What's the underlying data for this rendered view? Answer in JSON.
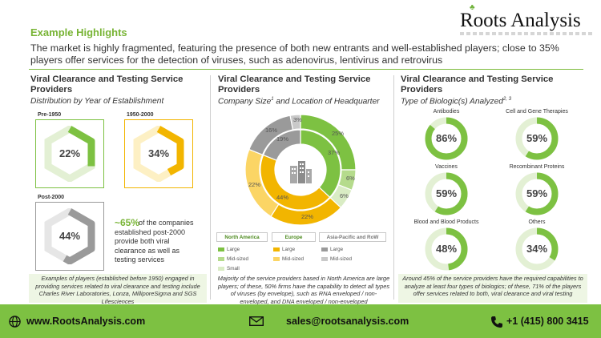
{
  "brand": {
    "name": "Roots Analysis"
  },
  "header": {
    "eyebrow": "Example Highlights",
    "headline": "The market is highly fragmented, featuring the presence of both new entrants and well-established players; close to 35% players offer services  for the detection of viruses, such as adenovirus, lentivirus and retrovirus"
  },
  "col1": {
    "title": "Viral Clearance and Testing Service Providers",
    "subtitle": "Distribution by Year of Establishment",
    "boxes": [
      {
        "label": "Pre-1950",
        "value": "22%",
        "fraction": 0.22,
        "color": "#7dc142"
      },
      {
        "label": "1950-2000",
        "value": "34%",
        "fraction": 0.34,
        "color": "#f2b500"
      },
      {
        "label": "Post-2000",
        "value": "44%",
        "fraction": 0.44,
        "color": "#9a9a9a"
      }
    ],
    "stat_big": "~65%",
    "stat_text": "of the companies established post-2000 provide both viral clearance as well as testing services",
    "note": "Examples of players (established before 1950) engaged in providing services related to viral clearance and testing include Charles River Laboratories, Lonza, MilliporeSigma and SGS Lifesciences"
  },
  "col2": {
    "title": "Viral Clearance and Testing Service Providers",
    "subtitle": "Company Size",
    "subtitle_sup": "1",
    "subtitle_rest": " and Location of Headquarter",
    "outer_ring": [
      {
        "label": "25%",
        "value": 25,
        "color": "#7dc142"
      },
      {
        "label": "6%",
        "value": 6,
        "color": "#b5db8c"
      },
      {
        "label": "6%",
        "value": 6,
        "color": "#d9ecc4"
      },
      {
        "label": "22%",
        "value": 22,
        "color": "#f2b500"
      },
      {
        "label": "22%",
        "value": 22,
        "color": "#fbd565"
      },
      {
        "label": "16%",
        "value": 16,
        "color": "#9a9a9a"
      },
      {
        "label": "3%",
        "value": 3,
        "color": "#c9c9c9"
      }
    ],
    "inner_ring": [
      {
        "label": "37%",
        "value": 37,
        "color": "#7dc142"
      },
      {
        "label": "44%",
        "value": 44,
        "color": "#f2b500"
      },
      {
        "label": "19%",
        "value": 19,
        "color": "#9a9a9a"
      }
    ],
    "legend": [
      {
        "head": "North America",
        "items": [
          {
            "label": "Large",
            "color": "#7dc142"
          },
          {
            "label": "Mid-sized",
            "color": "#b5db8c"
          },
          {
            "label": "Small",
            "color": "#d9ecc4"
          }
        ]
      },
      {
        "head": "Europe",
        "items": [
          {
            "label": "Large",
            "color": "#f2b500"
          },
          {
            "label": "Mid-sized",
            "color": "#fbd565"
          }
        ]
      },
      {
        "head": "Asia-Pacific and RoW",
        "items": [
          {
            "label": "Large",
            "color": "#9a9a9a"
          },
          {
            "label": "Mid-sized",
            "color": "#c9c9c9"
          }
        ]
      }
    ],
    "note": "Majority of the service providers based in North America are large players; of these, 50% firms have the capability to detect all types of viruses (by envelope), such as RNA enveloped / non-enveloped, and DNA enveloped / non-enveloped"
  },
  "col3": {
    "title": "Viral Clearance and Testing Service Providers",
    "subtitle": "Type of Biologic(s) Analyzed",
    "subtitle_sup": "2, 3",
    "rings": [
      {
        "label": "Antibodies",
        "value": "86%",
        "fraction": 0.86
      },
      {
        "label": "Cell and Gene Therapies",
        "value": "59%",
        "fraction": 0.59
      },
      {
        "label": "Vaccines",
        "value": "59%",
        "fraction": 0.59
      },
      {
        "label": "Recombinant Proteins",
        "value": "59%",
        "fraction": 0.59
      },
      {
        "label": "Blood and Blood Products",
        "value": "48%",
        "fraction": 0.48
      },
      {
        "label": "Others",
        "value": "34%",
        "fraction": 0.34
      }
    ],
    "note": "Around 45% of the service providers have the required capabilities to analyze at least four types of biologics; of these, 71% of the players offer services related to both, viral clearance and viral testing"
  },
  "footer": {
    "website": "www.RootsAnalysis.com",
    "email": "sales@rootsanalysis.com",
    "phone": "+1 (415) 800 3415"
  },
  "colors": {
    "accent": "#7dc142",
    "yellow": "#f2b500",
    "grey": "#9a9a9a"
  }
}
